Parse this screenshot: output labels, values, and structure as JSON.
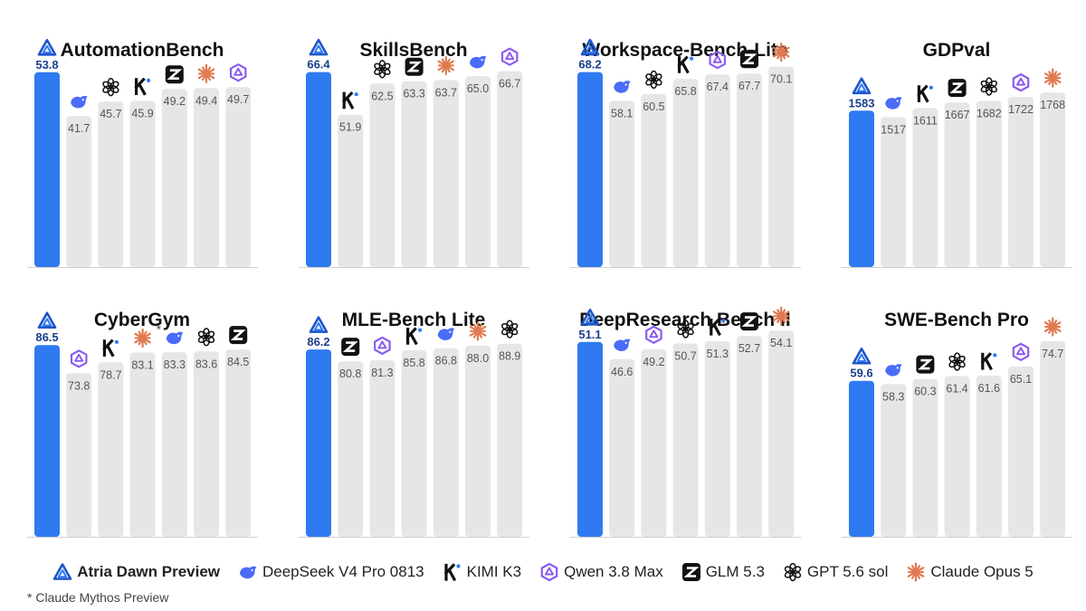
{
  "colors": {
    "atria_bar": "#2f7af0",
    "other_bar": "#e6e6e6",
    "atria_label": "#1c3f8c",
    "other_label": "#555555",
    "claude": "#e07a50",
    "qwen": "#8a5cf0",
    "deepseek": "#4a6cf7",
    "dark": "#111111"
  },
  "models": [
    {
      "id": "atria",
      "name": "Atria Dawn Preview",
      "icon": "atria-icon"
    },
    {
      "id": "deepseek",
      "name": "DeepSeek V4 Pro 0813",
      "icon": "deepseek-icon"
    },
    {
      "id": "kimi",
      "name": "KIMI K3",
      "icon": "kimi-icon"
    },
    {
      "id": "qwen",
      "name": "Qwen 3.8 Max",
      "icon": "qwen-icon"
    },
    {
      "id": "glm",
      "name": "GLM 5.3",
      "icon": "glm-icon"
    },
    {
      "id": "gpt",
      "name": "GPT 5.6 sol",
      "icon": "gpt-icon"
    },
    {
      "id": "claude",
      "name": "Claude Opus 5",
      "icon": "claude-icon"
    }
  ],
  "footnote": "* Claude Mythos Preview",
  "chart_data": [
    {
      "type": "bar",
      "title": "AutomationBench",
      "ylim": [
        0,
        60
      ],
      "bars": [
        {
          "model": "atria",
          "value": 53.8,
          "label": "53.8"
        },
        {
          "model": "deepseek",
          "value": 41.7,
          "label": "41.7"
        },
        {
          "model": "gpt",
          "value": 45.7,
          "label": "45.7"
        },
        {
          "model": "kimi",
          "value": 45.9,
          "label": "45.9"
        },
        {
          "model": "glm",
          "value": 49.2,
          "label": "49.2"
        },
        {
          "model": "claude",
          "value": 49.4,
          "label": "49.4"
        },
        {
          "model": "qwen",
          "value": 49.7,
          "label": "49.7"
        }
      ]
    },
    {
      "type": "bar",
      "title": "SkillsBench",
      "ylim": [
        0,
        74
      ],
      "bars": [
        {
          "model": "atria",
          "value": 66.4,
          "label": "66.4"
        },
        {
          "model": "kimi",
          "value": 51.9,
          "label": "51.9"
        },
        {
          "model": "gpt",
          "value": 62.5,
          "label": "62.5"
        },
        {
          "model": "glm",
          "value": 63.3,
          "label": "63.3"
        },
        {
          "model": "claude",
          "value": 63.7,
          "label": "63.7"
        },
        {
          "model": "deepseek",
          "value": 65.0,
          "label": "65.0"
        },
        {
          "model": "qwen",
          "value": 66.7,
          "label": "66.7"
        }
      ]
    },
    {
      "type": "bar",
      "title": "Workspace-Bench-Lite",
      "ylim": [
        0,
        76
      ],
      "bars": [
        {
          "model": "atria",
          "value": 68.2,
          "label": "68.2"
        },
        {
          "model": "deepseek",
          "value": 58.1,
          "label": "58.1"
        },
        {
          "model": "gpt",
          "value": 60.5,
          "label": "60.5"
        },
        {
          "model": "kimi",
          "value": 65.8,
          "label": "65.8"
        },
        {
          "model": "qwen",
          "value": 67.4,
          "label": "67.4"
        },
        {
          "model": "glm",
          "value": 67.7,
          "label": "67.7"
        },
        {
          "model": "claude",
          "value": 70.1,
          "label": "70.1"
        }
      ]
    },
    {
      "type": "bar",
      "title": "GDPval",
      "ylim": [
        0,
        2200
      ],
      "bars": [
        {
          "model": "atria",
          "value": 1583,
          "label": "1583"
        },
        {
          "model": "deepseek",
          "value": 1517,
          "label": "1517"
        },
        {
          "model": "kimi",
          "value": 1611,
          "label": "1611"
        },
        {
          "model": "glm",
          "value": 1667,
          "label": "1667"
        },
        {
          "model": "gpt",
          "value": 1682,
          "label": "1682"
        },
        {
          "model": "qwen",
          "value": 1722,
          "label": "1722"
        },
        {
          "model": "claude",
          "value": 1768,
          "label": "1768"
        }
      ]
    },
    {
      "type": "bar",
      "title": "CyberGym",
      "ylim": [
        0,
        98
      ],
      "bars": [
        {
          "model": "atria",
          "value": 86.5,
          "label": "86.5"
        },
        {
          "model": "qwen",
          "value": 73.8,
          "label": "73.8"
        },
        {
          "model": "kimi",
          "value": 78.7,
          "label": "78.7"
        },
        {
          "model": "claude",
          "value": 83.1,
          "label": "83.1",
          "marker": "*"
        },
        {
          "model": "deepseek",
          "value": 83.3,
          "label": "83.3"
        },
        {
          "model": "gpt",
          "value": 83.6,
          "label": "83.6"
        },
        {
          "model": "glm",
          "value": 84.5,
          "label": "84.5"
        }
      ]
    },
    {
      "type": "bar",
      "title": "MLE-Bench Lite",
      "ylim": [
        0,
        100
      ],
      "bars": [
        {
          "model": "atria",
          "value": 86.2,
          "label": "86.2"
        },
        {
          "model": "glm",
          "value": 80.8,
          "label": "80.8"
        },
        {
          "model": "qwen",
          "value": 81.3,
          "label": "81.3"
        },
        {
          "model": "kimi",
          "value": 85.8,
          "label": "85.8"
        },
        {
          "model": "deepseek",
          "value": 86.8,
          "label": "86.8"
        },
        {
          "model": "claude",
          "value": 88.0,
          "label": "88.0"
        },
        {
          "model": "gpt",
          "value": 88.9,
          "label": "88.9"
        }
      ]
    },
    {
      "type": "bar",
      "title": "DeepResearch Bench II",
      "ylim": [
        0,
        57
      ],
      "bars": [
        {
          "model": "atria",
          "value": 51.1,
          "label": "51.1"
        },
        {
          "model": "deepseek",
          "value": 46.6,
          "label": "46.6"
        },
        {
          "model": "qwen",
          "value": 49.2,
          "label": "49.2"
        },
        {
          "model": "gpt",
          "value": 50.7,
          "label": "50.7"
        },
        {
          "model": "kimi",
          "value": 51.3,
          "label": "51.3"
        },
        {
          "model": "glm",
          "value": 52.7,
          "label": "52.7"
        },
        {
          "model": "claude",
          "value": 54.1,
          "label": "54.1"
        }
      ]
    },
    {
      "type": "bar",
      "title": "SWE-Bench Pro",
      "ylim": [
        0,
        83
      ],
      "bars": [
        {
          "model": "atria",
          "value": 59.6,
          "label": "59.6"
        },
        {
          "model": "deepseek",
          "value": 58.3,
          "label": "58.3"
        },
        {
          "model": "glm",
          "value": 60.3,
          "label": "60.3"
        },
        {
          "model": "gpt",
          "value": 61.4,
          "label": "61.4"
        },
        {
          "model": "kimi",
          "value": 61.6,
          "label": "61.6"
        },
        {
          "model": "qwen",
          "value": 65.1,
          "label": "65.1"
        },
        {
          "model": "claude",
          "value": 74.7,
          "label": "74.7"
        }
      ]
    }
  ]
}
